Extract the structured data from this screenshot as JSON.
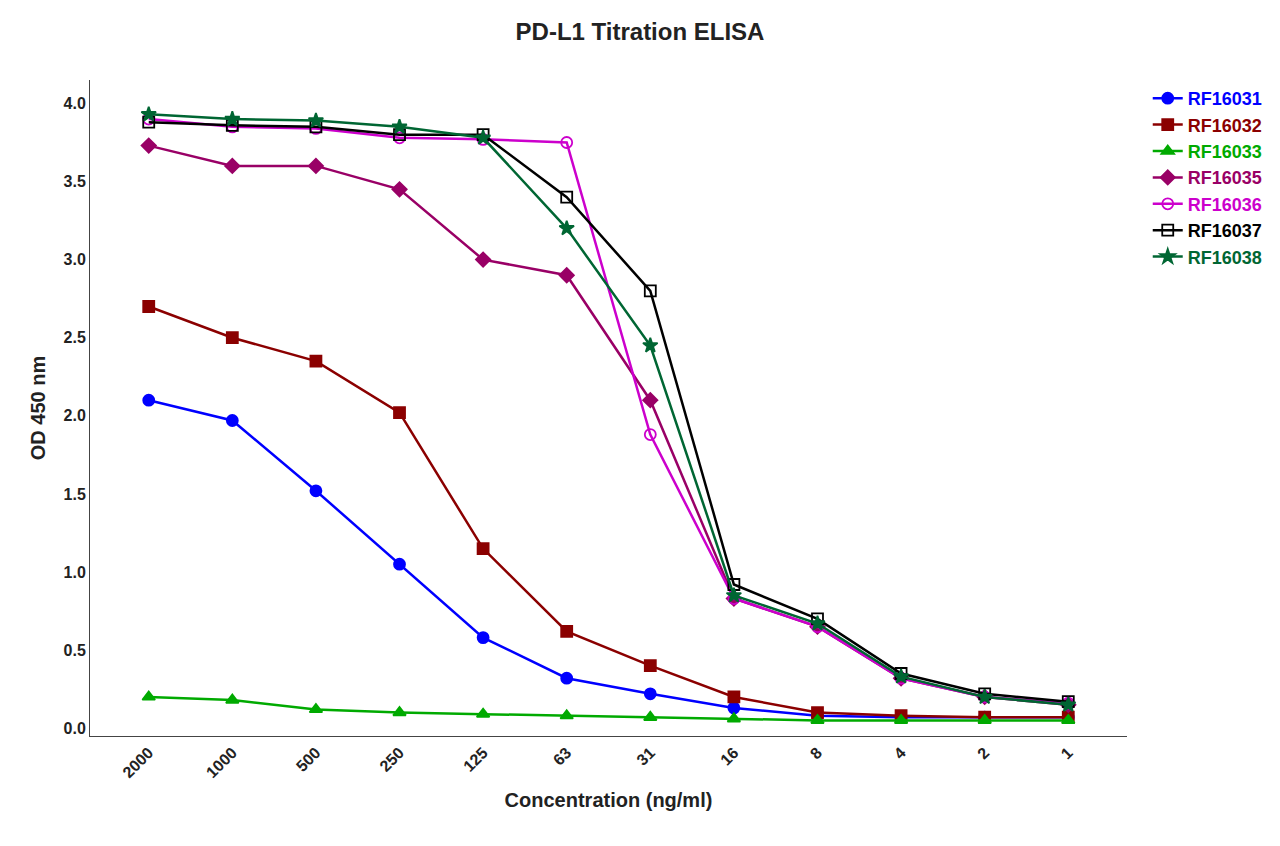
{
  "chart_data": {
    "type": "line",
    "title": "PD-L1 Titration ELISA",
    "xlabel": "Concentration (ng/ml)",
    "ylabel": "OD 450 nm",
    "categories": [
      "2000",
      "1000",
      "500",
      "250",
      "125",
      "63",
      "31",
      "16",
      "8",
      "4",
      "2",
      "1"
    ],
    "ylim": [
      -0.05,
      4.15
    ],
    "yticks": [
      {
        "value": 0,
        "label": "0.0"
      },
      0.5,
      {
        "value": 1,
        "label": "1.0"
      },
      1.5,
      {
        "value": 2,
        "label": "2.0"
      },
      2.5,
      {
        "value": 3,
        "label": "3.0"
      },
      3.5,
      {
        "value": 4,
        "label": "4.0"
      }
    ],
    "grid": false,
    "legend": "upper right",
    "series": [
      {
        "name": "RF16031",
        "color": "#0000FF",
        "marker": "circle",
        "values": [
          2.1,
          1.97,
          1.52,
          1.05,
          0.58,
          0.32,
          0.22,
          0.13,
          0.08,
          0.07,
          0.07,
          0.07
        ]
      },
      {
        "name": "RF16032",
        "color": "#8B0000",
        "marker": "square",
        "values": [
          2.7,
          2.5,
          2.35,
          2.02,
          1.15,
          0.62,
          0.4,
          0.2,
          0.1,
          0.08,
          0.07,
          0.07
        ]
      },
      {
        "name": "RF16033",
        "color": "#00AA00",
        "marker": "triangle-up",
        "values": [
          0.2,
          0.18,
          0.12,
          0.1,
          0.09,
          0.08,
          0.07,
          0.06,
          0.05,
          0.05,
          0.05,
          0.05
        ]
      },
      {
        "name": "RF16035",
        "color": "#990066",
        "marker": "diamond",
        "values": [
          3.73,
          3.6,
          3.6,
          3.45,
          3.0,
          2.9,
          2.1,
          0.83,
          0.65,
          0.32,
          0.2,
          0.15
        ]
      },
      {
        "name": "RF16036",
        "color": "#CC00CC",
        "marker": "circle-open",
        "values": [
          3.9,
          3.85,
          3.84,
          3.78,
          3.77,
          3.75,
          1.88,
          0.83,
          0.65,
          0.32,
          0.2,
          0.16
        ]
      },
      {
        "name": "RF16037",
        "color": "#000000",
        "marker": "square-open",
        "values": [
          3.88,
          3.86,
          3.85,
          3.8,
          3.8,
          3.4,
          2.8,
          0.92,
          0.7,
          0.35,
          0.22,
          0.17
        ]
      },
      {
        "name": "RF16038",
        "color": "#006633",
        "marker": "star",
        "values": [
          3.93,
          3.9,
          3.89,
          3.85,
          3.78,
          3.2,
          2.45,
          0.85,
          0.67,
          0.33,
          0.2,
          0.15
        ]
      }
    ]
  }
}
